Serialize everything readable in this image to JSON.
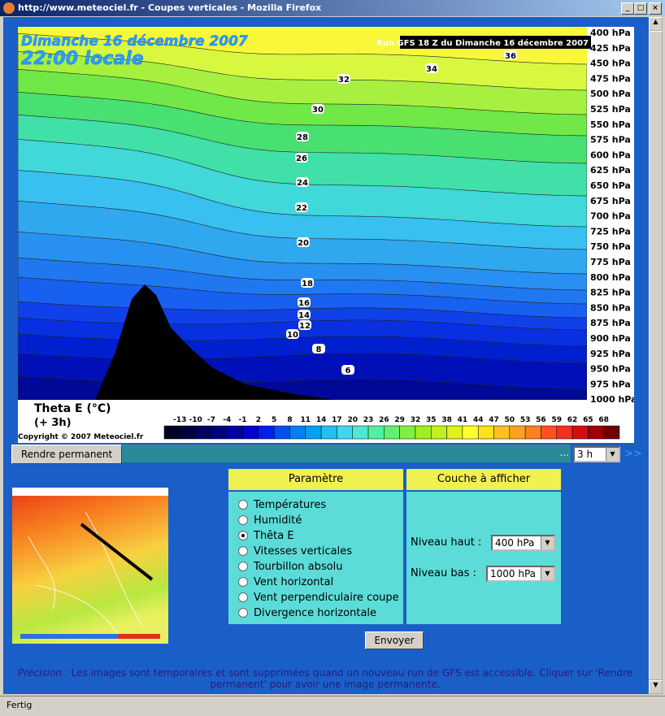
{
  "window": {
    "title": "http://www.meteociel.fr - Coupes verticales - Mozilla Firefox",
    "status": "Fertig"
  },
  "figure": {
    "date": "Dimanche 16 décembre 2007",
    "time": "22:00 locale",
    "run": "Run GFS 18 Z du Dimanche 16 décembre 2007",
    "levels": [
      "400 hPa",
      "425 hPa",
      "450 hPa",
      "475 hPa",
      "500 hPa",
      "525 hPa",
      "550 hPa",
      "575 hPa",
      "600 hPa",
      "625 hPa",
      "650 hPa",
      "675 hPa",
      "700 hPa",
      "725 hPa",
      "750 hPa",
      "775 hPa",
      "800 hPa",
      "825 hPa",
      "850 hPa",
      "875 hPa",
      "900 hPa",
      "925 hPa",
      "950 hPa",
      "975 hPa",
      "1000 hPa"
    ],
    "contour_labels": [
      "36",
      "34",
      "32",
      "30",
      "28",
      "26",
      "24",
      "22",
      "20",
      "18",
      "16",
      "14",
      "12",
      "10",
      "8",
      "6"
    ],
    "parameter": "Theta E (°C)",
    "step": "(+ 3h)",
    "copyright": "Copyright © 2007 Meteociel.fr",
    "colorbar_labels": [
      "-13",
      "-10",
      "-7",
      "-4",
      "-1",
      "2",
      "5",
      "8",
      "11",
      "14",
      "17",
      "20",
      "23",
      "26",
      "29",
      "32",
      "35",
      "38",
      "41",
      "44",
      "47",
      "50",
      "53",
      "56",
      "59",
      "62",
      "65",
      "68"
    ],
    "colorbar_colors": [
      "#000020",
      "#00003c",
      "#000060",
      "#000080",
      "#0000a8",
      "#0000d0",
      "#0020e8",
      "#0050f0",
      "#0080f0",
      "#00a0f0",
      "#20c0f0",
      "#40d8f0",
      "#50e8d0",
      "#50f0a0",
      "#60f070",
      "#80f040",
      "#a0f020",
      "#c0f020",
      "#e0f020",
      "#ffff30",
      "#ffe020",
      "#ffc020",
      "#ffa020",
      "#ff8020",
      "#ff5020",
      "#f03020",
      "#d01010",
      "#a00000",
      "#700000"
    ]
  },
  "controls": {
    "button": "Rendre permanent",
    "dots": "...",
    "step_select": "3 h",
    "next": ">>"
  },
  "form": {
    "param_header": "Paramètre",
    "layer_header": "Couche à afficher",
    "options": [
      "Températures",
      "Humidité",
      "Thêta E",
      "Vitesses verticales",
      "Tourbillon absolu",
      "Vent horizontal",
      "Vent perpendiculaire coupe",
      "Divergence horizontale"
    ],
    "selected": 2,
    "level_high_label": "Niveau haut :",
    "level_high": "400 hPa",
    "level_low_label": "Niveau bas :",
    "level_low": "1000 hPa",
    "submit": "Envoyer"
  },
  "note": {
    "prefix": "Précision :",
    "text": "Les images sont temporaires et sont supprimées quand un nouveau run de GFS est accessible. Cliquer sur 'Rendre permanent' pour avoir une image permanente."
  }
}
